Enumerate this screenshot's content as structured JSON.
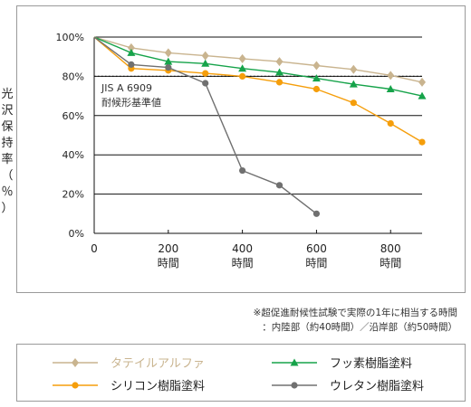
{
  "chart_data": {
    "type": "line",
    "ylabel_chars": [
      "光",
      "沢",
      "保",
      "持",
      "率",
      "（",
      "％",
      "）"
    ],
    "x_ticks": [
      {
        "value": 0,
        "label": "0",
        "unit": ""
      },
      {
        "value": 200,
        "label": "200",
        "unit": "時間"
      },
      {
        "value": 400,
        "label": "400",
        "unit": "時間"
      },
      {
        "value": 600,
        "label": "600",
        "unit": "時間"
      },
      {
        "value": 800,
        "label": "800",
        "unit": "時間"
      }
    ],
    "y_ticks": [
      {
        "value": 0,
        "label": "0%"
      },
      {
        "value": 20,
        "label": "20%"
      },
      {
        "value": 40,
        "label": "40%"
      },
      {
        "value": 60,
        "label": "60%"
      },
      {
        "value": 80,
        "label": "80%"
      },
      {
        "value": 100,
        "label": "100%"
      }
    ],
    "xlim": [
      0,
      885
    ],
    "ylim": [
      0,
      100
    ],
    "grid": "horizontal",
    "reference_line": {
      "y": 80,
      "style": "dotted",
      "label_lines": [
        "JIS A 6909",
        "耐候形基準値"
      ]
    },
    "series": [
      {
        "name": "タテイルアルファ",
        "color": "#c9b48f",
        "marker": "diamond",
        "x": [
          0,
          100,
          200,
          300,
          400,
          500,
          600,
          700,
          800,
          885
        ],
        "y": [
          100,
          94.5,
          92,
          90.5,
          89,
          87.5,
          85.5,
          83.5,
          80.5,
          77
        ]
      },
      {
        "name": "フッ素樹脂塗料",
        "color": "#16a34a",
        "marker": "triangle",
        "x": [
          0,
          100,
          200,
          300,
          400,
          500,
          600,
          700,
          800,
          885
        ],
        "y": [
          100,
          92,
          87.5,
          86.5,
          84,
          82,
          79,
          76,
          73.5,
          70
        ]
      },
      {
        "name": "シリコン樹脂塗料",
        "color": "#f59e0b",
        "marker": "circle",
        "x": [
          0,
          100,
          200,
          300,
          400,
          500,
          600,
          700,
          800,
          885
        ],
        "y": [
          100,
          84,
          83,
          81.5,
          80,
          77,
          73.5,
          66.5,
          56,
          46.5
        ]
      },
      {
        "name": "ウレタン樹脂塗料",
        "color": "#707070",
        "marker": "circle",
        "x": [
          0,
          100,
          200,
          300,
          400,
          500,
          600
        ],
        "y": [
          100,
          86,
          84.5,
          76.5,
          32,
          24.5,
          10
        ]
      }
    ],
    "legend": {
      "placement": "bottom",
      "order": [
        0,
        1,
        2,
        3
      ]
    },
    "footnote": [
      "※超促進耐候性試験で実際の1年に相当する時間",
      "：内陸部（約40時間）／沿岸部（約50時間）"
    ]
  }
}
